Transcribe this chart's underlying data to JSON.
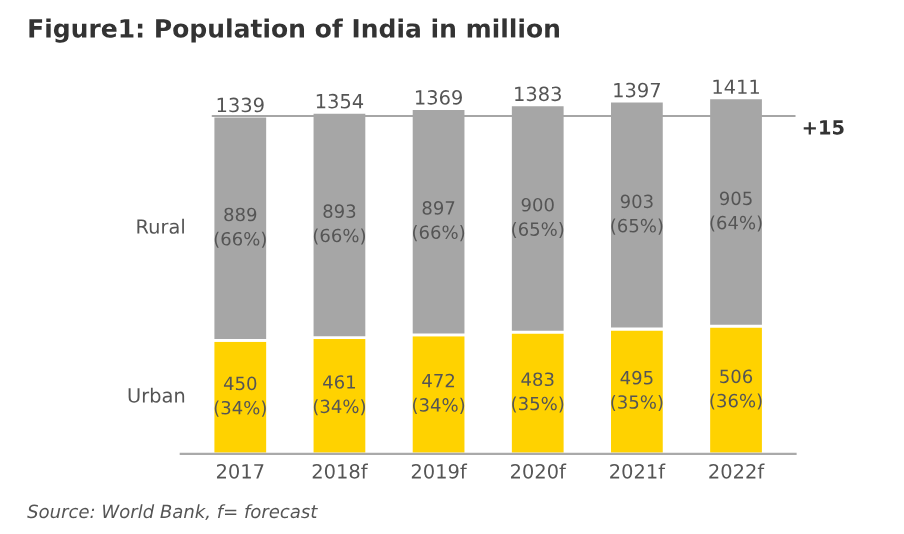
{
  "chart_data": {
    "type": "bar",
    "title": "Figure1: Population of India in million",
    "categories": [
      "2017",
      "2018f",
      "2019f",
      "2020f",
      "2021f",
      "2022f"
    ],
    "stacked": true,
    "series": [
      {
        "name": "Urban",
        "color": "#ffd200",
        "values": [
          450,
          461,
          472,
          483,
          495,
          506
        ],
        "value_labels": [
          "450\n(34%)",
          "461\n(34%)",
          "472\n(34%)",
          "483\n(35%)",
          "495\n(35%)",
          "506\n(36%)"
        ]
      },
      {
        "name": "Rural",
        "color": "#a6a6a6",
        "values": [
          889,
          893,
          897,
          900,
          903,
          905
        ],
        "value_labels": [
          "889\n(66%)",
          "893\n(66%)",
          "897\n(66%)",
          "900\n(65%)",
          "903\n(65%)",
          "905\n(64%)"
        ]
      }
    ],
    "totals": [
      "1339",
      "1354",
      "1369",
      "1383",
      "1397",
      "1411"
    ],
    "ref_lines": [
      {
        "axis": "y",
        "value": 1339,
        "color": "#a6a6a6"
      }
    ],
    "legend": false,
    "grid": false,
    "annotations": [
      "+15",
      "Source: World Bank, f= forecast"
    ]
  }
}
